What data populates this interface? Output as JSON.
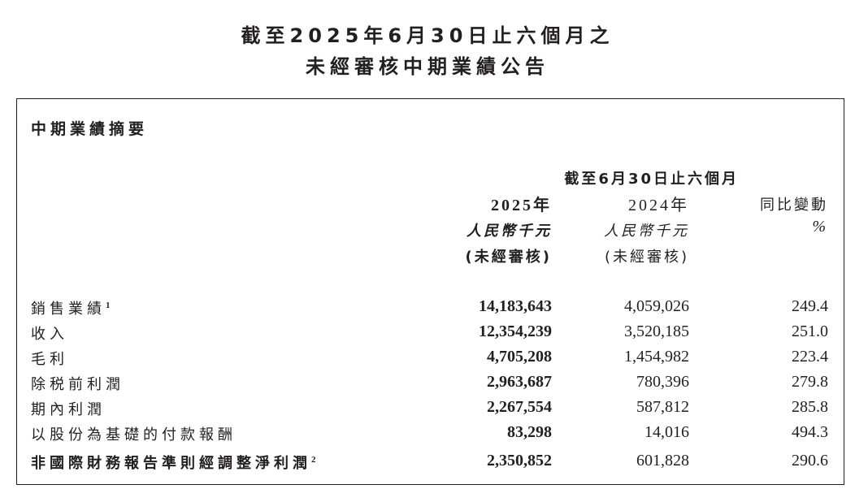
{
  "title_line1": "截至2025年6月30日止六個月之",
  "title_line2": "未經審核中期業績公告",
  "section_title": "中期業績摘要",
  "table": {
    "period_header": "截至6月30日止六個月",
    "columns": [
      {
        "year": "2025年",
        "currency": "人民幣千元",
        "audit": "(未經審核)"
      },
      {
        "year": "2024年",
        "currency": "人民幣千元",
        "audit": "(未經審核)"
      },
      {
        "year": "同比變動",
        "currency": "%",
        "audit": ""
      }
    ],
    "rows": [
      {
        "label": "銷售業績",
        "note": "1",
        "v2025": "14,183,643",
        "v2024": "4,059,026",
        "change": "249.4"
      },
      {
        "label": "收入",
        "note": "",
        "v2025": "12,354,239",
        "v2024": "3,520,185",
        "change": "251.0"
      },
      {
        "label": "毛利",
        "note": "",
        "v2025": "4,705,208",
        "v2024": "1,454,982",
        "change": "223.4"
      },
      {
        "label": "除税前利潤",
        "note": "",
        "v2025": "2,963,687",
        "v2024": "780,396",
        "change": "279.8"
      },
      {
        "label": "期內利潤",
        "note": "",
        "v2025": "2,267,554",
        "v2024": "587,812",
        "change": "285.8"
      },
      {
        "label": "以股份為基礎的付款報酬",
        "note": "",
        "v2025": "83,298",
        "v2024": "14,016",
        "change": "494.3"
      },
      {
        "label": "非國際財務報告準則經調整淨利潤",
        "note": "2",
        "v2025": "2,350,852",
        "v2024": "601,828",
        "change": "290.6"
      }
    ]
  }
}
